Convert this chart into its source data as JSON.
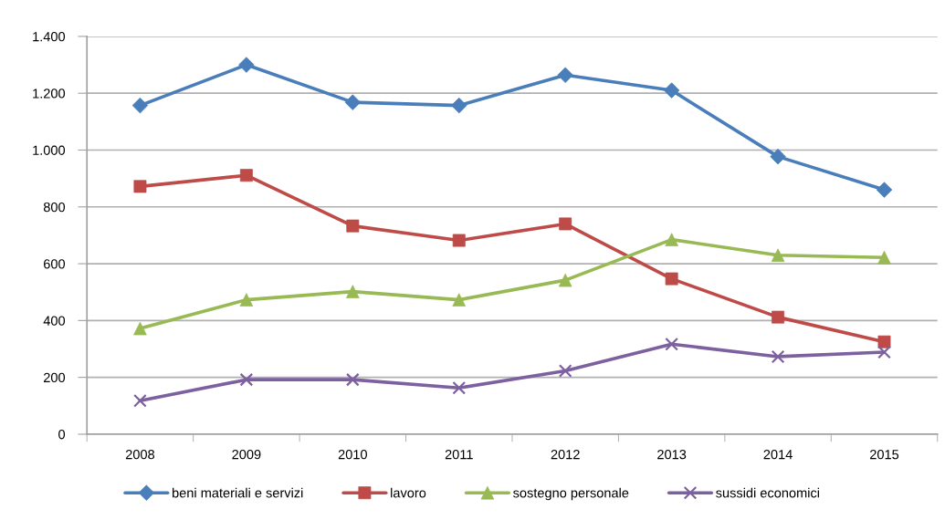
{
  "chart_data": {
    "type": "line",
    "categories": [
      "2008",
      "2009",
      "2010",
      "2011",
      "2012",
      "2013",
      "2014",
      "2015"
    ],
    "series": [
      {
        "name": "beni materiali e servizi",
        "color": "#4a7ebb",
        "marker": "diamond",
        "values": [
          1157,
          1300,
          1168,
          1157,
          1264,
          1210,
          977,
          860
        ]
      },
      {
        "name": "lavoro",
        "color": "#be4b48",
        "marker": "square",
        "values": [
          872,
          911,
          733,
          682,
          740,
          547,
          412,
          325
        ]
      },
      {
        "name": "sostegno personale",
        "color": "#98b954",
        "marker": "triangle",
        "values": [
          372,
          473,
          502,
          473,
          542,
          685,
          630,
          622
        ]
      },
      {
        "name": "sussidi economici",
        "color": "#7d60a0",
        "marker": "cross",
        "values": [
          118,
          192,
          192,
          163,
          223,
          317,
          273,
          289
        ]
      }
    ],
    "ylim": [
      0,
      1400
    ],
    "yticks": [
      0,
      200,
      400,
      600,
      800,
      {
        "value": 1000,
        "label": "1.000"
      },
      {
        "value": 1200,
        "label": "1.200"
      },
      {
        "value": 1400,
        "label": "1.400"
      }
    ],
    "grid": "y",
    "legend": "bottom",
    "line_style": "solid"
  }
}
